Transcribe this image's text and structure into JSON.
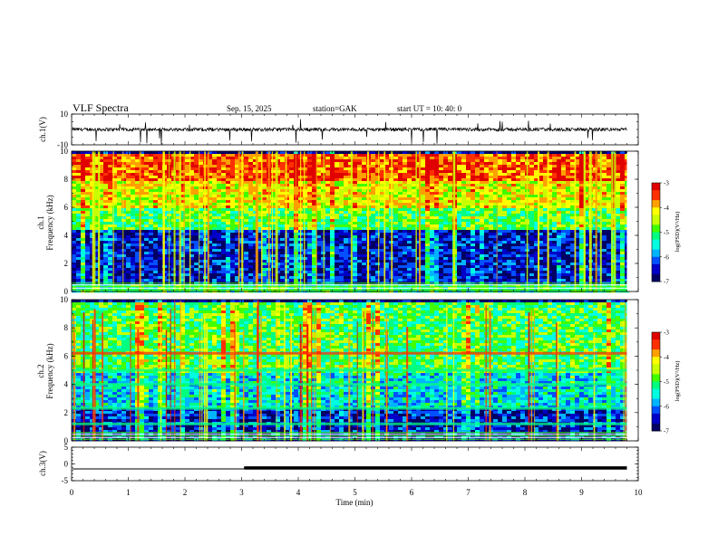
{
  "header": {
    "title": "VLF  Spectra",
    "date": "Sep. 15, 2025",
    "station": "station=GAK",
    "start_time": "start  UT  =    10: 40: 0"
  },
  "colors": {
    "palette": [
      "#000064",
      "#0000c8",
      "#0050ff",
      "#00b4ff",
      "#00ffe0",
      "#00ff80",
      "#40ff00",
      "#c8ff00",
      "#ffff00",
      "#ffa000",
      "#ff3000",
      "#e00000"
    ]
  },
  "chart_data": [
    {
      "id": "ch1-waveform",
      "type": "line",
      "ylabel": "ch.1(V)",
      "ylim": [
        -10,
        10
      ],
      "ytick_labels": [
        "10",
        "-10"
      ],
      "baseline": 0,
      "notes": "noisy broadband waveform with occasional negative spikes"
    },
    {
      "id": "ch1-spectrogram",
      "type": "heatmap",
      "ylabel_channel": "ch.1",
      "ylabel": "Frequency  (kHz)",
      "ylim": [
        0,
        10
      ],
      "ytick_labels": [
        "0",
        "2",
        "4",
        "6",
        "8",
        "10"
      ],
      "colorbar": {
        "label": "log(PSD)(V²/Hz)",
        "range": [
          -7,
          -3
        ],
        "tick_labels": [
          "-3",
          "-4",
          "-5",
          "-6",
          "-7"
        ]
      },
      "bands": [
        {
          "from_khz": 0,
          "to_khz": 0.6,
          "level": -5.2
        },
        {
          "from_khz": 0.6,
          "to_khz": 4.5,
          "level": -6.5
        },
        {
          "from_khz": 4.5,
          "to_khz": 6,
          "level": -5.0
        },
        {
          "from_khz": 6,
          "to_khz": 8,
          "level": -4.3
        },
        {
          "from_khz": 8,
          "to_khz": 10,
          "level": -3.6
        }
      ]
    },
    {
      "id": "ch2-spectrogram",
      "type": "heatmap",
      "ylabel_channel": "ch.2",
      "ylabel": "Frequency  (kHz)",
      "ylim": [
        0,
        10
      ],
      "ytick_labels": [
        "0",
        "2",
        "4",
        "6",
        "8",
        "10"
      ],
      "colorbar": {
        "label": "log(PSD)(V²/Hz)",
        "range": [
          -7,
          -3
        ],
        "tick_labels": [
          "-3",
          "-4",
          "-5",
          "-6",
          "-7"
        ]
      },
      "lines_khz": [
        6.2,
        5.0,
        4.0,
        2.3,
        1.2
      ],
      "bands": [
        {
          "from_khz": 0,
          "to_khz": 2.5,
          "level": -6.4
        },
        {
          "from_khz": 2.5,
          "to_khz": 5,
          "level": -5.6
        },
        {
          "from_khz": 5,
          "to_khz": 10,
          "level": -5.0
        }
      ]
    },
    {
      "id": "ch3-waveform",
      "type": "line",
      "ylabel": "ch.3(V)",
      "ylim": [
        -5,
        5
      ],
      "ytick_labels": [
        "5",
        "0",
        "-5"
      ],
      "level_before": -1.5,
      "level_after": -1.2,
      "step_at_min": 3.05
    }
  ],
  "xaxis": {
    "label": "Time  (min)",
    "range": [
      0,
      10
    ],
    "tick_labels": [
      "0",
      "1",
      "2",
      "3",
      "4",
      "5",
      "6",
      "7",
      "8",
      "9",
      "10"
    ],
    "data_end_min": 9.8
  }
}
